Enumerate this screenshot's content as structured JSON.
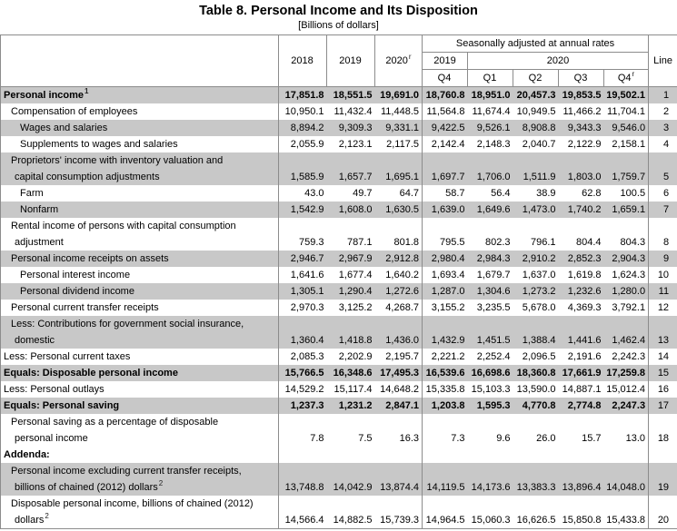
{
  "title": "Table 8. Personal Income and Its Disposition",
  "subtitle": "[Billions of dollars]",
  "table": {
    "col_headers": {
      "years": [
        {
          "label": "2018",
          "sup": ""
        },
        {
          "label": "2019",
          "sup": ""
        },
        {
          "label": "2020",
          "sup": "r"
        }
      ],
      "sa_caption": "Seasonally adjusted at annual rates",
      "sa_years": [
        {
          "label": "2019"
        },
        {
          "label": "2020"
        }
      ],
      "quarters": [
        {
          "label": "Q4",
          "sup": ""
        },
        {
          "label": "Q1",
          "sup": ""
        },
        {
          "label": "Q2",
          "sup": ""
        },
        {
          "label": "Q3",
          "sup": ""
        },
        {
          "label": "Q4",
          "sup": "r"
        }
      ],
      "line": "Line"
    },
    "rows": [
      {
        "label": "Personal income",
        "sup": "1",
        "indent": 0,
        "bold": true,
        "shaded": true,
        "line": "1",
        "values": [
          "17,851.8",
          "18,551.5",
          "19,691.0",
          "18,760.8",
          "18,951.0",
          "20,457.3",
          "19,853.5",
          "19,502.1"
        ]
      },
      {
        "label": "Compensation of employees",
        "indent": 1,
        "line": "2",
        "values": [
          "10,950.1",
          "11,432.4",
          "11,448.5",
          "11,564.8",
          "11,674.4",
          "10,949.5",
          "11,466.2",
          "11,704.1"
        ]
      },
      {
        "label": "Wages and salaries",
        "indent": 2,
        "shaded": true,
        "line": "3",
        "values": [
          "8,894.2",
          "9,309.3",
          "9,331.1",
          "9,422.5",
          "9,526.1",
          "8,908.8",
          "9,343.3",
          "9,546.0"
        ]
      },
      {
        "label": "Supplements to wages and salaries",
        "indent": 2,
        "line": "4",
        "values": [
          "2,055.9",
          "2,123.1",
          "2,117.5",
          "2,142.4",
          "2,148.3",
          "2,040.7",
          "2,122.9",
          "2,158.1"
        ]
      },
      {
        "label": "Proprietors' income with inventory valuation and",
        "label2": "capital consumption adjustments",
        "indent": 1,
        "shaded": true,
        "line": "5",
        "values": [
          "1,585.9",
          "1,657.7",
          "1,695.1",
          "1,697.7",
          "1,706.0",
          "1,511.9",
          "1,803.0",
          "1,759.7"
        ]
      },
      {
        "label": "Farm",
        "indent": 2,
        "line": "6",
        "values": [
          "43.0",
          "49.7",
          "64.7",
          "58.7",
          "56.4",
          "38.9",
          "62.8",
          "100.5"
        ]
      },
      {
        "label": "Nonfarm",
        "indent": 2,
        "shaded": true,
        "line": "7",
        "values": [
          "1,542.9",
          "1,608.0",
          "1,630.5",
          "1,639.0",
          "1,649.6",
          "1,473.0",
          "1,740.2",
          "1,659.1"
        ]
      },
      {
        "label": "Rental income of persons with capital consumption",
        "label2": "adjustment",
        "indent": 1,
        "line": "8",
        "values": [
          "759.3",
          "787.1",
          "801.8",
          "795.5",
          "802.3",
          "796.1",
          "804.4",
          "804.3"
        ]
      },
      {
        "label": "Personal income receipts on assets",
        "indent": 1,
        "shaded": true,
        "line": "9",
        "values": [
          "2,946.7",
          "2,967.9",
          "2,912.8",
          "2,980.4",
          "2,984.3",
          "2,910.2",
          "2,852.3",
          "2,904.3"
        ]
      },
      {
        "label": "Personal interest income",
        "indent": 2,
        "line": "10",
        "values": [
          "1,641.6",
          "1,677.4",
          "1,640.2",
          "1,693.4",
          "1,679.7",
          "1,637.0",
          "1,619.8",
          "1,624.3"
        ]
      },
      {
        "label": "Personal dividend income",
        "indent": 2,
        "shaded": true,
        "line": "11",
        "values": [
          "1,305.1",
          "1,290.4",
          "1,272.6",
          "1,287.0",
          "1,304.6",
          "1,273.2",
          "1,232.6",
          "1,280.0"
        ]
      },
      {
        "label": "Personal current transfer receipts",
        "indent": 1,
        "line": "12",
        "values": [
          "2,970.3",
          "3,125.2",
          "4,268.7",
          "3,155.2",
          "3,235.5",
          "5,678.0",
          "4,369.3",
          "3,792.1"
        ]
      },
      {
        "label": "Less: Contributions for government social insurance,",
        "label2": "domestic",
        "indent": 1,
        "shaded": true,
        "line": "13",
        "values": [
          "1,360.4",
          "1,418.8",
          "1,436.0",
          "1,432.9",
          "1,451.5",
          "1,388.4",
          "1,441.6",
          "1,462.4"
        ]
      },
      {
        "label": "Less: Personal current taxes",
        "indent": 0,
        "line": "14",
        "values": [
          "2,085.3",
          "2,202.9",
          "2,195.7",
          "2,221.2",
          "2,252.4",
          "2,096.5",
          "2,191.6",
          "2,242.3"
        ]
      },
      {
        "label": "Equals: Disposable personal income",
        "indent": 0,
        "bold": true,
        "shaded": true,
        "line": "15",
        "values": [
          "15,766.5",
          "16,348.6",
          "17,495.3",
          "16,539.6",
          "16,698.6",
          "18,360.8",
          "17,661.9",
          "17,259.8"
        ]
      },
      {
        "label": "Less: Personal outlays",
        "indent": 0,
        "line": "16",
        "values": [
          "14,529.2",
          "15,117.4",
          "14,648.2",
          "15,335.8",
          "15,103.3",
          "13,590.0",
          "14,887.1",
          "15,012.4"
        ]
      },
      {
        "label": "Equals: Personal saving",
        "indent": 0,
        "bold": true,
        "shaded": true,
        "line": "17",
        "values": [
          "1,237.3",
          "1,231.2",
          "2,847.1",
          "1,203.8",
          "1,595.3",
          "4,770.8",
          "2,774.8",
          "2,247.3"
        ]
      },
      {
        "label": "Personal saving as a percentage of disposable",
        "label2": "personal income",
        "indent": 1,
        "line": "18",
        "values": [
          "7.8",
          "7.5",
          "16.3",
          "7.3",
          "9.6",
          "26.0",
          "15.7",
          "13.0"
        ]
      },
      {
        "label": "Addenda:",
        "indent": 0,
        "bold": true,
        "line": "",
        "values": [
          "",
          "",
          "",
          "",
          "",
          "",
          "",
          ""
        ]
      },
      {
        "label": "Personal income excluding current transfer receipts,",
        "label2": "billions of chained (2012) dollars",
        "sup2": "2",
        "indent": 1,
        "shaded": true,
        "line": "19",
        "values": [
          "13,748.8",
          "14,042.9",
          "13,874.4",
          "14,119.5",
          "14,173.6",
          "13,383.3",
          "13,896.4",
          "14,048.0"
        ]
      },
      {
        "label": "Disposable personal income, billions of chained (2012)",
        "label2": "dollars",
        "sup2": "2",
        "indent": 1,
        "line": "20",
        "values": [
          "14,566.4",
          "14,882.5",
          "15,739.3",
          "14,964.5",
          "15,060.3",
          "16,626.5",
          "15,850.8",
          "15,433.8"
        ]
      }
    ]
  }
}
